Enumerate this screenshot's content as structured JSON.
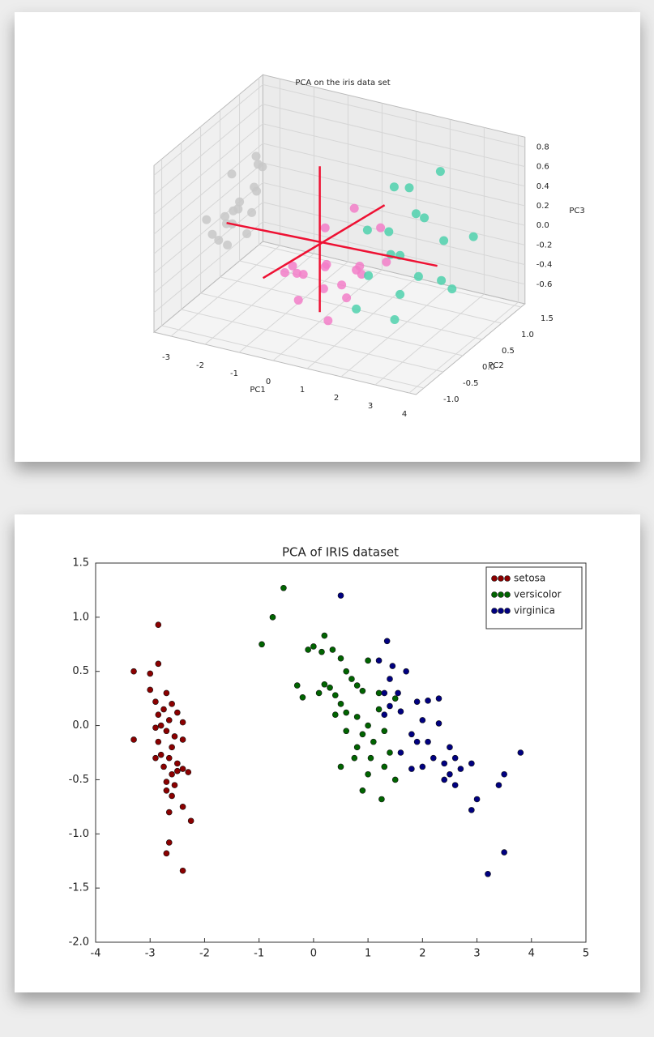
{
  "chart_data": [
    {
      "type": "scatter3d",
      "title": "PCA on the iris data set",
      "xlabel": "PC1",
      "ylabel": "PC2",
      "zlabel": "PC3",
      "xlim": [
        -3.5,
        4.2
      ],
      "ylim": [
        -1.2,
        1.6
      ],
      "zlim": [
        -0.8,
        0.9
      ],
      "xticks": [
        -3,
        -2,
        -1,
        0,
        1,
        2,
        3,
        4
      ],
      "yticks": [
        {
          "value": -1,
          "label": "-1.0"
        },
        -0.5,
        {
          "value": 0,
          "label": "0.0"
        },
        0.5,
        {
          "value": 1,
          "label": "1.0"
        },
        1.5
      ],
      "zticks": [
        -0.6,
        -0.4,
        -0.2,
        {
          "value": 0,
          "label": "0.0"
        },
        0.2,
        0.4,
        0.6,
        0.8
      ],
      "grid": true,
      "series": [
        {
          "color": "#c8c8c8",
          "x": [
            -2.7,
            -2.9,
            -2.5,
            -3.1,
            -2.6,
            -2.8,
            -2.4,
            -3.0,
            -2.7,
            -2.5,
            -2.9,
            -2.6,
            -2.2,
            -2.8,
            -3.2,
            -2.4,
            -2.7,
            -2.6
          ],
          "y": [
            0.3,
            0.1,
            0.5,
            -0.2,
            0.8,
            0.2,
            0.0,
            0.4,
            -0.4,
            0.6,
            0.9,
            -0.1,
            0.3,
            0.7,
            0.2,
            -0.3,
            0.1,
            0.4
          ],
          "z": [
            0.1,
            0.0,
            0.2,
            0.05,
            0.3,
            -0.1,
            0.15,
            -0.05,
            0.0,
            0.4,
            0.35,
            -0.2,
            0.25,
            -0.15,
            -0.3,
            0.1,
            0.45,
            -0.25
          ]
        },
        {
          "color": "#f27ec8",
          "x": [
            0.2,
            0.5,
            -0.3,
            1.0,
            0.8,
            -0.6,
            0.1,
            1.3,
            0.6,
            -0.1,
            0.4,
            1.1,
            -0.8,
            0.9,
            0.3,
            1.5,
            0.0,
            0.7
          ],
          "y": [
            0.0,
            -0.3,
            0.4,
            0.2,
            -0.6,
            0.1,
            0.8,
            -0.2,
            0.5,
            -0.5,
            -0.9,
            0.6,
            -0.2,
            -0.1,
            0.3,
            0.4,
            -0.7,
            -0.4
          ],
          "z": [
            -0.2,
            -0.1,
            0.0,
            -0.3,
            -0.2,
            -0.4,
            0.1,
            -0.1,
            -0.35,
            -0.15,
            -0.25,
            0.05,
            -0.3,
            -0.45,
            -0.5,
            -0.2,
            0.0,
            -0.6
          ]
        },
        {
          "color": "#4fd1ad",
          "x": [
            1.8,
            2.2,
            2.5,
            1.5,
            2.9,
            3.3,
            2.0,
            2.7,
            1.6,
            3.6,
            2.4,
            3.0,
            1.9,
            2.6,
            3.8,
            2.1,
            1.4,
            3.2
          ],
          "y": [
            0.2,
            -0.1,
            0.5,
            0.6,
            0.0,
            0.3,
            -0.5,
            -0.3,
            0.9,
            0.8,
            1.0,
            -0.7,
            0.4,
            0.2,
            -0.2,
            -0.9,
            0.0,
            0.6
          ],
          "z": [
            0.2,
            0.1,
            0.3,
            0.5,
            -0.1,
            0.2,
            0.0,
            -0.2,
            0.4,
            0.1,
            0.6,
            -0.3,
            -0.1,
            0.45,
            0.0,
            -0.2,
            0.25,
            -0.4
          ]
        }
      ]
    },
    {
      "type": "scatter",
      "title": "PCA of IRIS dataset",
      "legend": "upper right",
      "xlim": [
        -4,
        5
      ],
      "ylim": [
        -2,
        1.5
      ],
      "xticks": [
        -4,
        -3,
        -2,
        -1,
        0,
        1,
        2,
        3,
        4,
        5
      ],
      "yticks": [
        {
          "value": -2,
          "label": "-2.0"
        },
        -1.5,
        {
          "value": -1,
          "label": "-1.0"
        },
        -0.5,
        {
          "value": 0,
          "label": "0.0"
        },
        0.5,
        {
          "value": 1,
          "label": "1.0"
        },
        1.5
      ],
      "series": [
        {
          "name": "setosa",
          "color": "#8b0000",
          "x": [
            -2.85,
            -3.3,
            -3.0,
            -2.85,
            -3.0,
            -2.7,
            -2.9,
            -2.6,
            -2.75,
            -2.5,
            -2.85,
            -2.65,
            -2.4,
            -2.9,
            -2.7,
            -3.3,
            -2.55,
            -2.85,
            -2.4,
            -2.6,
            -2.8,
            -2.65,
            -2.9,
            -2.5,
            -2.75,
            -2.4,
            -2.3,
            -2.6,
            -2.55,
            -2.7,
            -2.6,
            -2.4,
            -2.65,
            -2.25,
            -2.65,
            -2.7,
            -2.4,
            -2.5,
            -2.7,
            -2.8
          ],
          "values": [
            0.93,
            0.5,
            0.48,
            0.57,
            0.33,
            0.3,
            0.22,
            0.2,
            0.15,
            0.12,
            0.1,
            0.05,
            0.03,
            -0.02,
            -0.05,
            -0.13,
            -0.1,
            -0.15,
            -0.13,
            -0.2,
            -0.27,
            -0.3,
            -0.3,
            -0.35,
            -0.38,
            -0.4,
            -0.43,
            -0.45,
            -0.55,
            -0.6,
            -0.65,
            -0.75,
            -0.8,
            -0.88,
            -1.08,
            -1.18,
            -1.34,
            -0.42,
            -0.52,
            0.0
          ]
        },
        {
          "name": "versicolor",
          "color": "#006400",
          "x": [
            -0.55,
            -0.75,
            -0.95,
            0.2,
            -0.1,
            0.0,
            0.15,
            0.35,
            0.5,
            -0.3,
            0.2,
            0.3,
            0.1,
            0.4,
            -0.2,
            0.6,
            0.7,
            0.8,
            0.9,
            1.0,
            0.5,
            0.6,
            0.8,
            0.4,
            1.2,
            1.0,
            0.9,
            1.3,
            0.6,
            0.8,
            1.1,
            0.75,
            1.05,
            1.3,
            0.5,
            1.0,
            1.5,
            0.9,
            1.25,
            1.4,
            1.5,
            1.2
          ],
          "values": [
            1.27,
            1.0,
            0.75,
            0.83,
            0.7,
            0.73,
            0.68,
            0.7,
            0.62,
            0.37,
            0.38,
            0.35,
            0.3,
            0.28,
            0.26,
            0.5,
            0.43,
            0.37,
            0.32,
            0.6,
            0.2,
            0.12,
            0.08,
            0.1,
            0.15,
            0.0,
            -0.08,
            -0.05,
            -0.05,
            -0.2,
            -0.15,
            -0.3,
            -0.3,
            -0.38,
            -0.38,
            -0.45,
            -0.5,
            -0.6,
            -0.68,
            -0.25,
            0.25,
            0.3
          ]
        },
        {
          "name": "virginica",
          "color": "#000080",
          "x": [
            0.5,
            1.35,
            1.2,
            1.45,
            1.7,
            1.4,
            1.3,
            1.55,
            1.4,
            1.6,
            1.3,
            1.9,
            2.1,
            2.3,
            2.0,
            1.8,
            1.9,
            2.1,
            2.2,
            2.4,
            2.6,
            2.9,
            2.0,
            1.8,
            2.5,
            2.7,
            2.4,
            2.6,
            3.0,
            2.9,
            3.4,
            3.5,
            3.8,
            3.5,
            3.2,
            1.6,
            2.3,
            2.5
          ],
          "values": [
            1.2,
            0.78,
            0.6,
            0.55,
            0.5,
            0.43,
            0.3,
            0.3,
            0.18,
            0.13,
            0.1,
            0.22,
            0.23,
            0.25,
            0.05,
            -0.08,
            -0.15,
            -0.15,
            -0.3,
            -0.35,
            -0.3,
            -0.35,
            -0.38,
            -0.4,
            -0.45,
            -0.4,
            -0.5,
            -0.55,
            -0.68,
            -0.78,
            -0.55,
            -0.45,
            -0.25,
            -1.17,
            -1.37,
            -0.25,
            0.02,
            -0.2
          ]
        }
      ]
    }
  ]
}
